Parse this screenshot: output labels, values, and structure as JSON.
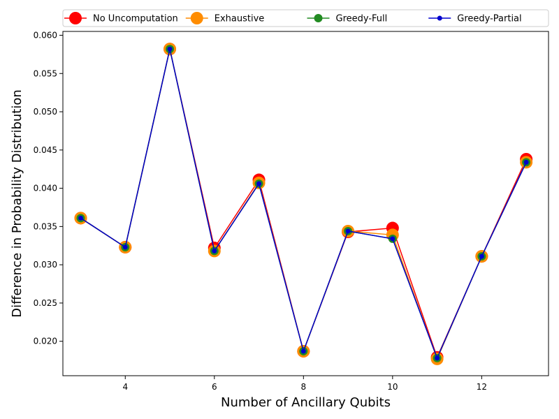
{
  "chart_data": {
    "type": "line",
    "title": "",
    "xlabel": "Number of Ancillary Qubits",
    "ylabel": "Difference in Probability Distribution",
    "xlim": [
      2.6,
      13.5
    ],
    "ylim": [
      0.0155,
      0.0605
    ],
    "xticks": [
      4,
      6,
      8,
      10,
      12
    ],
    "xtick_labels": [
      "4",
      "6",
      "8",
      "10",
      "12"
    ],
    "yticks": [
      0.02,
      0.025,
      0.03,
      0.035,
      0.04,
      0.045,
      0.05,
      0.055,
      0.06
    ],
    "ytick_labels": [
      "0.020",
      "0.025",
      "0.030",
      "0.035",
      "0.040",
      "0.045",
      "0.050",
      "0.055",
      "0.060"
    ],
    "grid": false,
    "legend_position": "top, above plot, horizontal",
    "x": [
      3,
      4,
      5,
      6,
      7,
      8,
      9,
      10,
      11,
      12,
      13
    ],
    "series": [
      {
        "name": "No Uncomputation",
        "color": "#ff0000",
        "marker_size": "large",
        "values": [
          0.0361,
          0.0323,
          0.0582,
          0.0322,
          0.0411,
          0.0187,
          0.0343,
          0.0348,
          0.0179,
          0.0311,
          0.0438
        ]
      },
      {
        "name": "Exhaustive",
        "color": "#ff8c00",
        "marker_size": "large",
        "values": [
          0.0361,
          0.0323,
          0.0582,
          0.0318,
          0.0407,
          0.0187,
          0.0344,
          0.0339,
          0.0177,
          0.0311,
          0.0434
        ]
      },
      {
        "name": "Greedy-Full",
        "color": "#228b22",
        "marker_size": "medium",
        "values": [
          0.0361,
          0.0323,
          0.0582,
          0.0318,
          0.0406,
          0.0187,
          0.0344,
          0.0334,
          0.0178,
          0.0311,
          0.0434
        ]
      },
      {
        "name": "Greedy-Partial",
        "color": "#0000cd",
        "marker_size": "small",
        "values": [
          0.0361,
          0.0323,
          0.0582,
          0.0318,
          0.0406,
          0.0187,
          0.0344,
          0.0334,
          0.0178,
          0.0311,
          0.0434
        ]
      }
    ]
  }
}
